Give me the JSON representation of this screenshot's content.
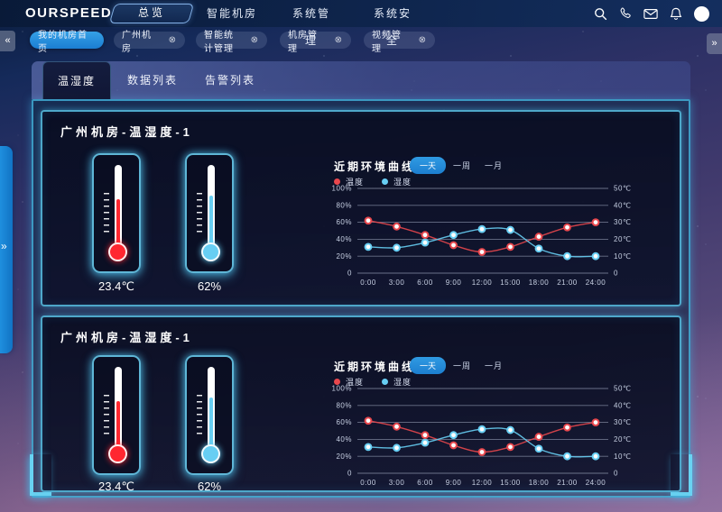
{
  "brand": "OURSPEED",
  "navbar": {
    "items": [
      {
        "label": "总览",
        "active": true
      },
      {
        "label": "智能机房",
        "active": false
      },
      {
        "label": "系统管理",
        "active": false
      },
      {
        "label": "系统安全",
        "active": false
      }
    ],
    "icons": [
      "search-icon",
      "phone-icon",
      "mail-icon",
      "bell-icon",
      "avatar"
    ]
  },
  "tabbar": {
    "scroll_left": "«",
    "scroll_right": "»",
    "tabs": [
      {
        "label": "我的机房首页",
        "active": true,
        "closable": false
      },
      {
        "label": "广州机房",
        "active": false,
        "closable": true
      },
      {
        "label": "智能统计管理",
        "active": false,
        "closable": true
      },
      {
        "label": "机房管理",
        "active": false,
        "closable": true
      },
      {
        "label": "视频管理",
        "active": false,
        "closable": true
      }
    ],
    "close_glyph": "⊗"
  },
  "drawer": {
    "chevron": "»"
  },
  "content_tabs": [
    {
      "label": "温湿度",
      "active": true
    },
    {
      "label": "数据列表",
      "active": false
    },
    {
      "label": "告警列表",
      "active": false
    }
  ],
  "panels": [
    {
      "title": "广州机房-温湿度-1",
      "thermometers": [
        {
          "type": "temperature",
          "value": "23.4℃",
          "color": "#ff2730",
          "fill_percent": 58
        },
        {
          "type": "humidity",
          "value": "62%",
          "color": "#67cef3",
          "fill_percent": 62
        }
      ]
    },
    {
      "title": "广州机房-温湿度-1",
      "thermometers": [
        {
          "type": "temperature",
          "value": "23.4℃",
          "color": "#ff2730",
          "fill_percent": 58
        },
        {
          "type": "humidity",
          "value": "62%",
          "color": "#67cef3",
          "fill_percent": 62
        }
      ]
    }
  ],
  "chart_data": [
    {
      "type": "line",
      "title": "近期环境曲线",
      "range_options": [
        {
          "label": "一天",
          "active": true
        },
        {
          "label": "一周",
          "active": false
        },
        {
          "label": "一月",
          "active": false
        }
      ],
      "categories": [
        "0:00",
        "3:00",
        "6:00",
        "9:00",
        "12:00",
        "15:00",
        "18:00",
        "21:00",
        "24:00"
      ],
      "series": [
        {
          "name": "温度",
          "color": "#e8474d",
          "axis": "right",
          "unit": "℃",
          "values": [
            31,
            27.5,
            22.5,
            16.5,
            12.5,
            15.5,
            21.5,
            27,
            30
          ]
        },
        {
          "name": "湿度",
          "color": "#67cef3",
          "axis": "left",
          "unit": "%",
          "values": [
            31,
            30,
            36,
            45,
            52,
            51,
            29,
            20,
            20
          ]
        }
      ],
      "y_left": {
        "min": 0,
        "max": 100,
        "ticks": [
          "100%",
          "80%",
          "60%",
          "40%",
          "20%",
          "0"
        ]
      },
      "y_right": {
        "min": 0,
        "max": 50,
        "ticks": [
          "50℃",
          "40℃",
          "30℃",
          "20℃",
          "10℃",
          "0"
        ]
      },
      "grid": true,
      "legend_position": "top-left"
    },
    {
      "type": "line",
      "title": "近期环境曲线",
      "range_options": [
        {
          "label": "一天",
          "active": true
        },
        {
          "label": "一周",
          "active": false
        },
        {
          "label": "一月",
          "active": false
        }
      ],
      "categories": [
        "0:00",
        "3:00",
        "6:00",
        "9:00",
        "12:00",
        "15:00",
        "18:00",
        "21:00",
        "24:00"
      ],
      "series": [
        {
          "name": "温度",
          "color": "#e8474d",
          "axis": "right",
          "unit": "℃",
          "values": [
            31,
            27.5,
            22.5,
            16.5,
            12.5,
            15.5,
            21.5,
            27,
            30
          ]
        },
        {
          "name": "湿度",
          "color": "#67cef3",
          "axis": "left",
          "unit": "%",
          "values": [
            31,
            30,
            36,
            45,
            52,
            51,
            29,
            20,
            20
          ]
        }
      ],
      "y_left": {
        "min": 0,
        "max": 100,
        "ticks": [
          "100%",
          "80%",
          "60%",
          "40%",
          "20%",
          "0"
        ]
      },
      "y_right": {
        "min": 0,
        "max": 50,
        "ticks": [
          "50℃",
          "40℃",
          "30℃",
          "20℃",
          "10℃",
          "0"
        ]
      },
      "grid": true,
      "legend_position": "top-left"
    }
  ],
  "colors": {
    "accent_cyan": "#48c1eb",
    "accent_blue": "#1d7fd0",
    "temperature_red": "#e8474d",
    "humidity_blue": "#67cef3",
    "panel_bg": "#0c122a"
  }
}
